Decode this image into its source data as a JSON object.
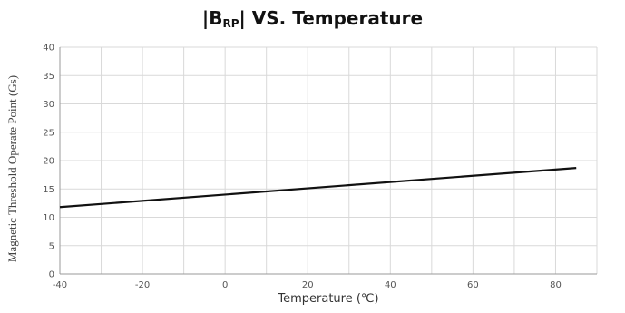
{
  "chart_data": {
    "type": "line",
    "title_prefix": "|B",
    "title_sub": "RP",
    "title_suffix": "| VS. Temperature",
    "xlabel": "Temperature (℃)",
    "ylabel": "Magnetic Threshold Operate Point (Gs)",
    "xlim": [
      -40,
      90
    ],
    "ylim": [
      0,
      40
    ],
    "xticks": [
      -40,
      -20,
      0,
      20,
      40,
      60,
      80
    ],
    "yticks": [
      0,
      5,
      10,
      15,
      20,
      25,
      30,
      35,
      40
    ],
    "grid": true,
    "series": [
      {
        "x": [
          -40,
          85
        ],
        "y": [
          11.8,
          18.7
        ],
        "color": "#111111"
      }
    ]
  }
}
